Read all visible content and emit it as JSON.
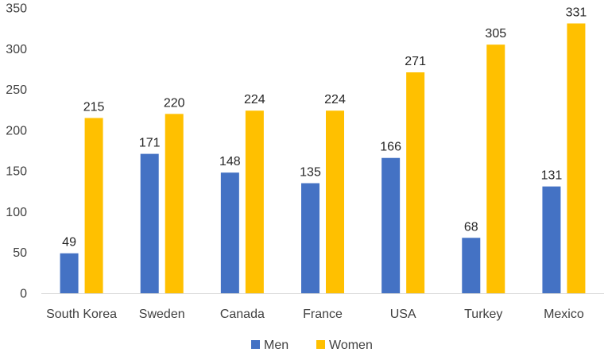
{
  "chart_data": {
    "type": "bar",
    "title": "",
    "xlabel": "",
    "ylabel": "",
    "ylim": [
      0,
      350
    ],
    "yticks": [
      0,
      50,
      100,
      150,
      200,
      250,
      300,
      350
    ],
    "grid": false,
    "legend_position": "bottom",
    "data_labels": true,
    "categories": [
      "South Korea",
      "Sweden",
      "Canada",
      "France",
      "USA",
      "Turkey",
      "Mexico"
    ],
    "series": [
      {
        "name": "Men",
        "color": "#4472C4",
        "values": [
          49,
          171,
          148,
          135,
          166,
          68,
          131
        ]
      },
      {
        "name": "Women",
        "color": "#FFC000",
        "values": [
          215,
          220,
          224,
          224,
          271,
          305,
          331
        ]
      }
    ]
  }
}
